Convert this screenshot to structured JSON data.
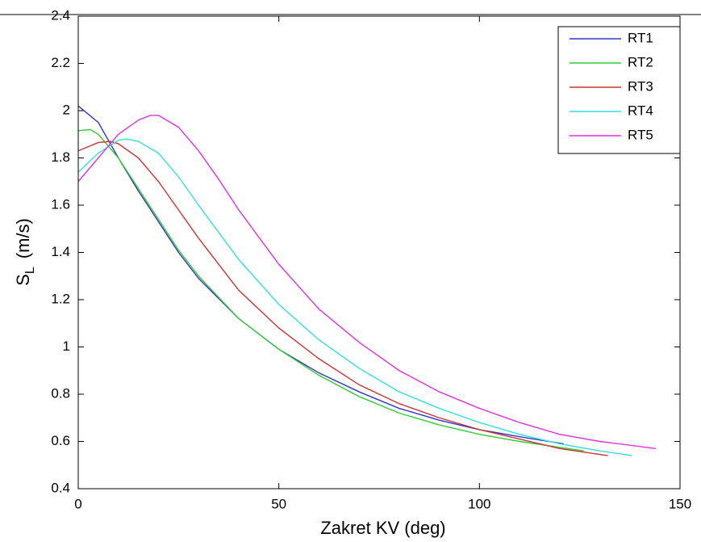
{
  "chart_data": {
    "type": "line",
    "xlabel": "Zakret KV (deg)",
    "ylabel": {
      "main": "S",
      "sub": "L",
      "unit": "(m/s)"
    },
    "xlim": [
      0,
      150
    ],
    "xticks": [
      0,
      50,
      100,
      150
    ],
    "ylim": [
      0.4,
      2.4
    ],
    "yticks": [
      0.4,
      0.6,
      0.8,
      1,
      1.2,
      1.4,
      1.6,
      1.8,
      2,
      2.2,
      2.4
    ],
    "legend": "upper-right",
    "series": [
      {
        "name": "RT1",
        "color": "#3333cc",
        "x": [
          0,
          5,
          10,
          15,
          20,
          25,
          30,
          40,
          50,
          60,
          70,
          80,
          90,
          100,
          110,
          121
        ],
        "values": [
          2.02,
          1.95,
          1.8,
          1.66,
          1.53,
          1.4,
          1.29,
          1.12,
          0.99,
          0.89,
          0.81,
          0.74,
          0.69,
          0.65,
          0.62,
          0.59
        ]
      },
      {
        "name": "RT2",
        "color": "#33cc33",
        "x": [
          0,
          3,
          5,
          10,
          15,
          20,
          25,
          30,
          40,
          50,
          60,
          70,
          80,
          90,
          100,
          110,
          120,
          126
        ],
        "values": [
          1.915,
          1.92,
          1.9,
          1.8,
          1.67,
          1.54,
          1.41,
          1.3,
          1.12,
          0.99,
          0.88,
          0.79,
          0.72,
          0.67,
          0.63,
          0.6,
          0.575,
          0.56
        ]
      },
      {
        "name": "RT3",
        "color": "#cc3333",
        "x": [
          0,
          5,
          8,
          10,
          15,
          20,
          25,
          30,
          40,
          50,
          60,
          70,
          80,
          90,
          100,
          110,
          120,
          132
        ],
        "values": [
          1.83,
          1.865,
          1.87,
          1.86,
          1.8,
          1.7,
          1.58,
          1.46,
          1.24,
          1.08,
          0.95,
          0.84,
          0.76,
          0.7,
          0.65,
          0.61,
          0.57,
          0.54
        ]
      },
      {
        "name": "RT4",
        "color": "#33dddd",
        "x": [
          0,
          5,
          10,
          12,
          15,
          20,
          25,
          30,
          40,
          50,
          60,
          70,
          80,
          90,
          100,
          110,
          120,
          130,
          138
        ],
        "values": [
          1.74,
          1.82,
          1.875,
          1.88,
          1.87,
          1.82,
          1.72,
          1.6,
          1.37,
          1.18,
          1.03,
          0.91,
          0.81,
          0.74,
          0.68,
          0.63,
          0.59,
          0.56,
          0.54
        ]
      },
      {
        "name": "RT5",
        "color": "#dd33dd",
        "x": [
          0,
          5,
          10,
          15,
          18,
          20,
          25,
          30,
          35,
          40,
          50,
          60,
          70,
          80,
          90,
          100,
          110,
          120,
          130,
          144
        ],
        "values": [
          1.7,
          1.8,
          1.9,
          1.96,
          1.98,
          1.98,
          1.93,
          1.83,
          1.71,
          1.58,
          1.35,
          1.16,
          1.02,
          0.9,
          0.81,
          0.74,
          0.68,
          0.63,
          0.6,
          0.57
        ]
      }
    ]
  }
}
